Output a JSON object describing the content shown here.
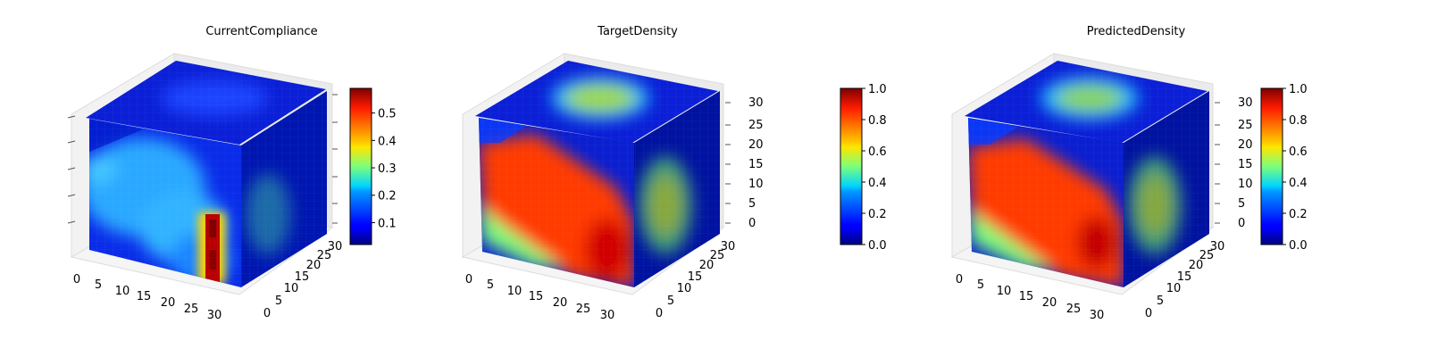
{
  "chart_data": [
    {
      "type": "heatmap",
      "subtype": "3d-voxel-cube",
      "title": "CurrentCompliance",
      "colormap": "jet",
      "x_ticks": [
        "0",
        "5",
        "10",
        "15",
        "20",
        "25",
        "30"
      ],
      "y_ticks": [
        "0",
        "5",
        "10",
        "15",
        "20",
        "25",
        "30"
      ],
      "z_ticks": [
        "",
        "",
        "",
        "",
        "",
        "",
        ""
      ],
      "xlim": [
        0,
        32
      ],
      "ylim": [
        0,
        32
      ],
      "zlim": [
        0,
        32
      ],
      "colorbar": {
        "min": 0.02,
        "max": 0.59,
        "ticks": [
          "0.1",
          "0.2",
          "0.3",
          "0.4",
          "0.5"
        ],
        "tick_values": [
          0.1,
          0.2,
          0.3,
          0.4,
          0.5
        ]
      }
    },
    {
      "type": "heatmap",
      "subtype": "3d-voxel-cube",
      "title": "TargetDensity",
      "colormap": "jet",
      "x_ticks": [
        "0",
        "5",
        "10",
        "15",
        "20",
        "25",
        "30"
      ],
      "y_ticks": [
        "0",
        "5",
        "10",
        "15",
        "20",
        "25",
        "30"
      ],
      "z_ticks": [
        "0",
        "5",
        "10",
        "15",
        "20",
        "25",
        "30"
      ],
      "xlim": [
        0,
        32
      ],
      "ylim": [
        0,
        32
      ],
      "zlim": [
        0,
        32
      ],
      "colorbar": {
        "min": 0.0,
        "max": 1.0,
        "ticks": [
          "0.0",
          "0.2",
          "0.4",
          "0.6",
          "0.8",
          "1.0"
        ],
        "tick_values": [
          0.0,
          0.2,
          0.4,
          0.6,
          0.8,
          1.0
        ]
      }
    },
    {
      "type": "heatmap",
      "subtype": "3d-voxel-cube",
      "title": "PredictedDensity",
      "colormap": "jet",
      "x_ticks": [
        "0",
        "5",
        "10",
        "15",
        "20",
        "25",
        "30"
      ],
      "y_ticks": [
        "0",
        "5",
        "10",
        "15",
        "20",
        "25",
        "30"
      ],
      "z_ticks": [
        "0",
        "5",
        "10",
        "15",
        "20",
        "25",
        "30"
      ],
      "xlim": [
        0,
        32
      ],
      "ylim": [
        0,
        32
      ],
      "zlim": [
        0,
        32
      ],
      "colorbar": {
        "min": 0.0,
        "max": 1.0,
        "ticks": [
          "0.0",
          "0.2",
          "0.4",
          "0.6",
          "0.8",
          "1.0"
        ],
        "tick_values": [
          0.0,
          0.2,
          0.4,
          0.6,
          0.8,
          1.0
        ]
      }
    }
  ]
}
